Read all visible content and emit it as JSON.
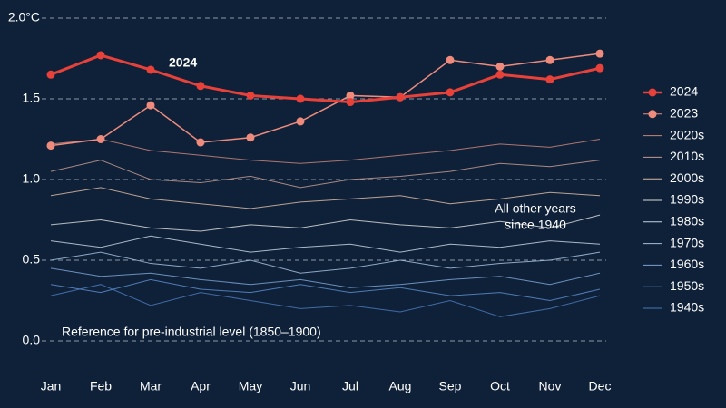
{
  "chart_data": {
    "type": "line",
    "categories": [
      "Jan",
      "Feb",
      "Mar",
      "Apr",
      "May",
      "Jun",
      "Jul",
      "Aug",
      "Sep",
      "Oct",
      "Nov",
      "Dec"
    ],
    "ylim": [
      0,
      2
    ],
    "yticks": [
      {
        "value": 0,
        "label": "0.0"
      },
      {
        "value": 0.5,
        "label": "0.5"
      },
      {
        "value": 1,
        "label": "1.0"
      },
      {
        "value": 1.5,
        "label": "1.5"
      },
      {
        "value": 2,
        "label": "2.0°C"
      }
    ],
    "grid": true,
    "legend": "right",
    "annotations": {
      "highlight": "2024",
      "others": [
        "All other years",
        "since 1940"
      ],
      "reference": "Reference for pre-industrial level (1850–1900)"
    },
    "series": [
      {
        "name": "1940s",
        "color": "#4a78b8",
        "linewidth": 1,
        "marker": false,
        "values": [
          0.28,
          0.35,
          0.22,
          0.3,
          0.25,
          0.2,
          0.22,
          0.18,
          0.25,
          0.15,
          0.2,
          0.28
        ]
      },
      {
        "name": "1950s",
        "color": "#5b8bcb",
        "linewidth": 1,
        "marker": false,
        "values": [
          0.35,
          0.3,
          0.38,
          0.32,
          0.3,
          0.35,
          0.3,
          0.33,
          0.28,
          0.3,
          0.25,
          0.32
        ]
      },
      {
        "name": "1960s",
        "color": "#7ba3d4",
        "linewidth": 1,
        "marker": false,
        "values": [
          0.45,
          0.4,
          0.42,
          0.38,
          0.35,
          0.38,
          0.33,
          0.35,
          0.38,
          0.4,
          0.35,
          0.42
        ]
      },
      {
        "name": "1970s",
        "color": "#a5bfdc",
        "linewidth": 1,
        "marker": false,
        "values": [
          0.5,
          0.55,
          0.48,
          0.45,
          0.5,
          0.42,
          0.45,
          0.5,
          0.45,
          0.48,
          0.5,
          0.55
        ]
      },
      {
        "name": "1980s",
        "color": "#c6d3e2",
        "linewidth": 1,
        "marker": false,
        "values": [
          0.62,
          0.58,
          0.65,
          0.6,
          0.55,
          0.58,
          0.6,
          0.55,
          0.6,
          0.58,
          0.62,
          0.6
        ]
      },
      {
        "name": "1990s",
        "color": "#d9d9d9",
        "linewidth": 1,
        "marker": false,
        "values": [
          0.72,
          0.75,
          0.7,
          0.68,
          0.72,
          0.7,
          0.75,
          0.72,
          0.7,
          0.74,
          0.7,
          0.78
        ]
      },
      {
        "name": "2000s",
        "color": "#d9b8a2",
        "linewidth": 1,
        "marker": false,
        "values": [
          0.9,
          0.95,
          0.88,
          0.85,
          0.82,
          0.86,
          0.88,
          0.9,
          0.85,
          0.88,
          0.92,
          0.9
        ]
      },
      {
        "name": "2010s",
        "color": "#c49a8f",
        "linewidth": 1,
        "marker": false,
        "values": [
          1.05,
          1.12,
          1.0,
          0.98,
          1.02,
          0.95,
          1.0,
          1.02,
          1.05,
          1.1,
          1.08,
          1.12
        ]
      },
      {
        "name": "2020s",
        "color": "#c98479",
        "linewidth": 1,
        "marker": false,
        "values": [
          1.22,
          1.25,
          1.18,
          1.15,
          1.12,
          1.1,
          1.12,
          1.15,
          1.18,
          1.22,
          1.2,
          1.25
        ]
      },
      {
        "name": "2023",
        "color": "#ee8b7c",
        "linewidth": 1.5,
        "marker": true,
        "values": [
          1.21,
          1.25,
          1.46,
          1.23,
          1.26,
          1.36,
          1.52,
          1.51,
          1.74,
          1.7,
          1.74,
          1.78
        ]
      },
      {
        "name": "2024",
        "color": "#e8413a",
        "linewidth": 3,
        "marker": true,
        "values": [
          1.65,
          1.77,
          1.68,
          1.58,
          1.52,
          1.5,
          1.48,
          1.51,
          1.54,
          1.65,
          1.62,
          1.69
        ]
      }
    ]
  }
}
